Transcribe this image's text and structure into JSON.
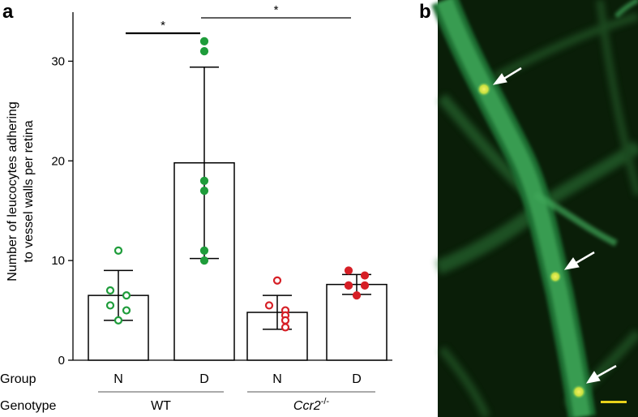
{
  "chart_data": {
    "type": "bar",
    "panel_a_label": "a",
    "panel_b_label": "b",
    "ylabel_line1": "Number of leucocytes adhering",
    "ylabel_line2": "to vessel walls per retina",
    "ylim": [
      0,
      35
    ],
    "yticks": [
      "0",
      "10",
      "20",
      "30"
    ],
    "ytick_values": [
      0,
      10,
      20,
      30
    ],
    "row_labels": {
      "group": "Group",
      "genotype": "Genotype"
    },
    "groups": [
      "N",
      "D",
      "N",
      "D"
    ],
    "genotypes": [
      {
        "label": "WT",
        "italic": false,
        "superscript": ""
      },
      {
        "label": "Ccr2",
        "italic": true,
        "superscript": "-/-"
      }
    ],
    "bars": [
      {
        "group": "N",
        "genotype": "WT",
        "mean": 6.5,
        "sd_low": 4.0,
        "sd_high": 9.0,
        "color": "#1e9c3a",
        "filled": false,
        "points": [
          11.0,
          7.0,
          6.5,
          5.5,
          5.0,
          4.0
        ]
      },
      {
        "group": "D",
        "genotype": "WT",
        "mean": 19.8,
        "sd_low": 10.2,
        "sd_high": 29.4,
        "color": "#1e9c3a",
        "filled": true,
        "points": [
          32.0,
          31.0,
          18.0,
          17.0,
          11.0,
          10.0
        ]
      },
      {
        "group": "N",
        "genotype": "Ccr2-/-",
        "mean": 4.8,
        "sd_low": 3.1,
        "sd_high": 6.5,
        "color": "#d61f26",
        "filled": false,
        "points": [
          8.0,
          5.5,
          5.0,
          4.5,
          4.0,
          3.3
        ]
      },
      {
        "group": "D",
        "genotype": "Ccr2-/-",
        "mean": 7.6,
        "sd_low": 6.6,
        "sd_high": 8.6,
        "color": "#d61f26",
        "filled": true,
        "points": [
          9.0,
          8.5,
          7.5,
          7.5,
          7.5,
          6.5
        ]
      }
    ],
    "significance": [
      {
        "from": 0,
        "to": 1,
        "label": "*"
      },
      {
        "from": 1,
        "to": 3,
        "label": "*"
      }
    ]
  },
  "micrograph": {
    "background": "#0a1e08",
    "vessel_color": "#3fa85a",
    "arrow_color": "#ffffff",
    "scale_bar_color": "#e8d21a",
    "arrow_count": 3
  }
}
